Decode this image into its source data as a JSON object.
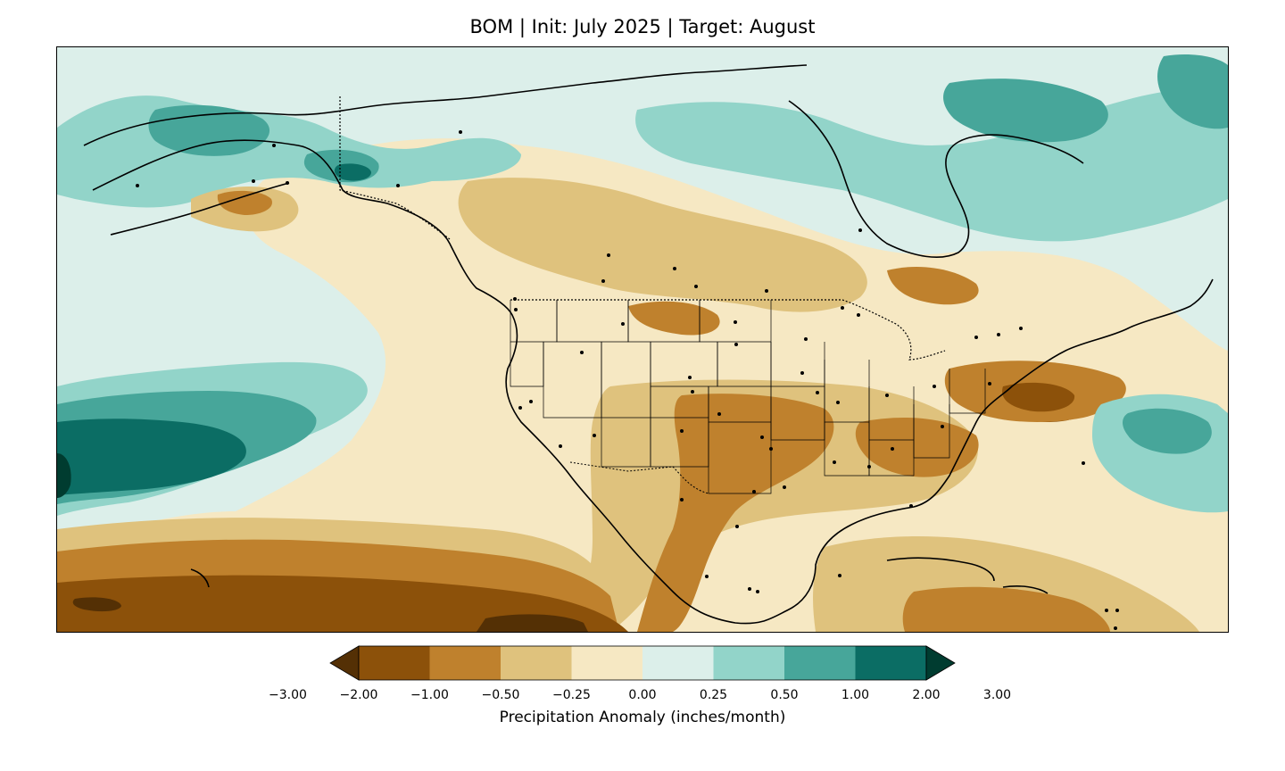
{
  "title": "BOM | Init: July 2025 | Target: August",
  "colorbar": {
    "label": "Precipitation Anomaly (inches/month)",
    "ticks": [
      "−3.00",
      "−2.00",
      "−1.00",
      "−0.50",
      "−0.25",
      "0.00",
      "0.25",
      "0.50",
      "1.00",
      "2.00",
      "3.00"
    ],
    "colors": [
      "#543005",
      "#8c510a",
      "#bf812d",
      "#dfc27d",
      "#f6e8c3",
      "#dcefea",
      "#92d4c9",
      "#47a69a",
      "#0b6d64",
      "#003c30"
    ],
    "extend": "both"
  },
  "map": {
    "projection": "PlateCarree",
    "region": "North America",
    "ocean_fill": "#dcefea"
  }
}
